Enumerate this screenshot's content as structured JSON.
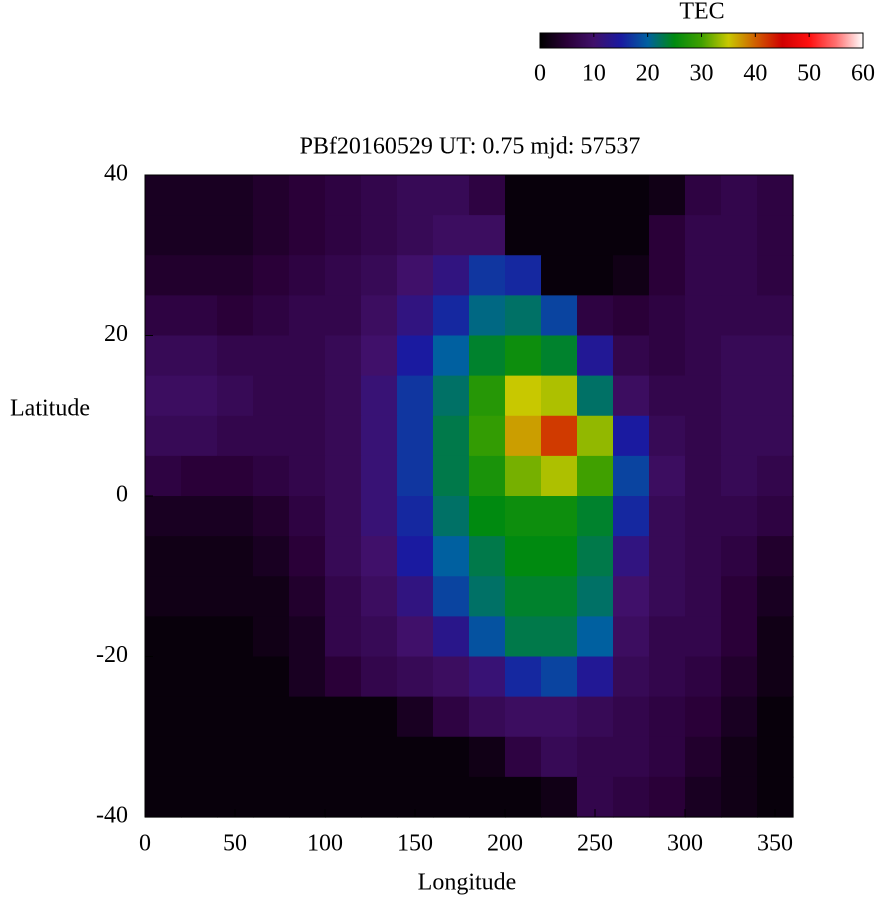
{
  "chart_data": {
    "type": "heatmap",
    "title": "PBf20160529  UT: 0.75  mjd: 57537",
    "xlabel": "Longitude",
    "ylabel": "Latitude",
    "x": [
      10,
      30,
      50,
      70,
      90,
      110,
      130,
      150,
      170,
      190,
      210,
      230,
      250,
      270,
      290,
      310,
      330,
      350
    ],
    "y": [
      37.5,
      32.5,
      27.5,
      22.5,
      17.5,
      12.5,
      7.5,
      2.5,
      -2.5,
      -7.5,
      -12.5,
      -17.5,
      -22.5,
      -27.5,
      -32.5,
      -37.5
    ],
    "z": [
      [
        3,
        3,
        3,
        4,
        5,
        6,
        7,
        8,
        8,
        6,
        1,
        1,
        1,
        1,
        2,
        6,
        7,
        6
      ],
      [
        3,
        3,
        3,
        4,
        5,
        6,
        7,
        8,
        9,
        9,
        1,
        1,
        1,
        1,
        5,
        7,
        7,
        6
      ],
      [
        4,
        4,
        4,
        5,
        6,
        7,
        8,
        10,
        12,
        17,
        16,
        1,
        1,
        2,
        5,
        7,
        7,
        6
      ],
      [
        6,
        6,
        5,
        6,
        7,
        7,
        9,
        12,
        16,
        21,
        22,
        18,
        6,
        5,
        6,
        7,
        7,
        7
      ],
      [
        8,
        8,
        7,
        7,
        7,
        8,
        10,
        15,
        20,
        24,
        26,
        24,
        14,
        7,
        6,
        7,
        8,
        8
      ],
      [
        9,
        9,
        8,
        7,
        7,
        8,
        11,
        17,
        22,
        28,
        35,
        34,
        22,
        9,
        7,
        7,
        8,
        8
      ],
      [
        8,
        8,
        7,
        7,
        7,
        8,
        11,
        17,
        23,
        29,
        37,
        42,
        33,
        15,
        8,
        7,
        8,
        8
      ],
      [
        6,
        5,
        5,
        6,
        7,
        8,
        11,
        17,
        23,
        27,
        32,
        34,
        30,
        18,
        9,
        7,
        8,
        7
      ],
      [
        3,
        3,
        3,
        4,
        6,
        8,
        11,
        16,
        22,
        25,
        26,
        26,
        24,
        16,
        8,
        7,
        7,
        6
      ],
      [
        2,
        2,
        2,
        3,
        5,
        8,
        10,
        15,
        20,
        23,
        25,
        25,
        23,
        12,
        8,
        7,
        6,
        4
      ],
      [
        2,
        2,
        2,
        2,
        4,
        7,
        9,
        12,
        18,
        22,
        24,
        24,
        22,
        10,
        8,
        7,
        5,
        3
      ],
      [
        1,
        1,
        1,
        2,
        3,
        7,
        8,
        10,
        13,
        19,
        23,
        23,
        20,
        9,
        7,
        7,
        5,
        2
      ],
      [
        1,
        1,
        1,
        1,
        3,
        5,
        7,
        8,
        9,
        11,
        16,
        18,
        14,
        8,
        7,
        6,
        4,
        2
      ],
      [
        1,
        1,
        1,
        1,
        1,
        1,
        1,
        3,
        6,
        8,
        9,
        9,
        8,
        7,
        6,
        5,
        3,
        1
      ],
      [
        1,
        1,
        1,
        1,
        1,
        1,
        1,
        1,
        1,
        2,
        6,
        8,
        7,
        7,
        6,
        4,
        2,
        1
      ],
      [
        1,
        1,
        1,
        1,
        1,
        1,
        1,
        1,
        1,
        1,
        1,
        2,
        7,
        6,
        5,
        3,
        2,
        1
      ]
    ],
    "xlim": [
      0,
      360
    ],
    "xticks": [
      0,
      50,
      100,
      150,
      200,
      250,
      300,
      350
    ],
    "ylim": [
      -40,
      40
    ],
    "yticks": [
      -40,
      -20,
      0,
      20,
      40
    ],
    "colorbar": {
      "title": "TEC",
      "zlim": [
        0,
        60
      ],
      "zticks": [
        0,
        10,
        20,
        30,
        40,
        50,
        60
      ]
    },
    "colorscale": [
      "#000000",
      "#2a0038",
      "#40106a",
      "#1a1aa0",
      "#0060a0",
      "#008a10",
      "#40a000",
      "#c8c800",
      "#d06000",
      "#d00000",
      "#ff1010",
      "#ff7070",
      "#ffffff"
    ]
  }
}
